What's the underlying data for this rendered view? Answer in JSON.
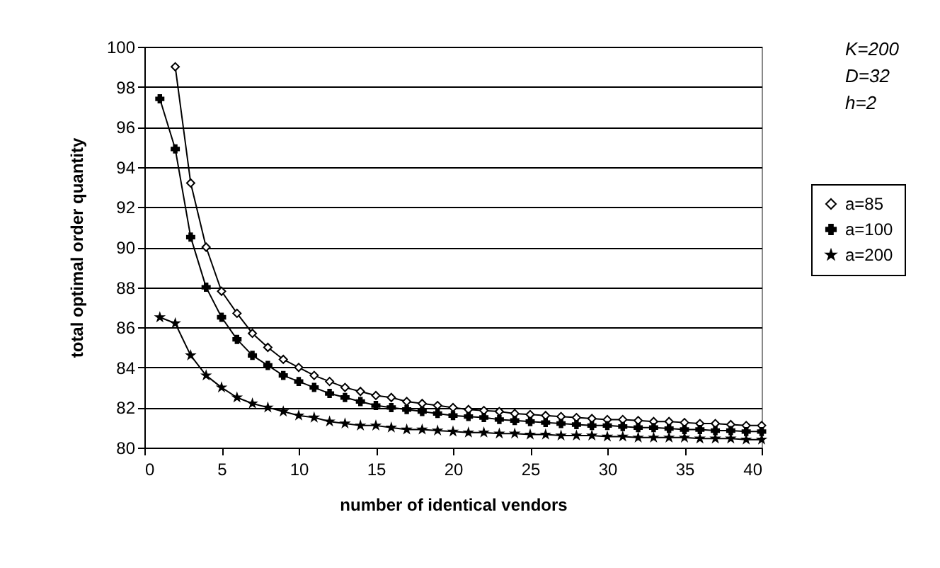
{
  "chart_data": {
    "type": "line",
    "xlabel": "number of identical vendors",
    "ylabel": "total optimal order quantity",
    "annotations": [
      "K=200",
      "D=32",
      "h=2"
    ],
    "x": [
      1,
      2,
      3,
      4,
      5,
      6,
      7,
      8,
      9,
      10,
      11,
      12,
      13,
      14,
      15,
      16,
      17,
      18,
      19,
      20,
      21,
      22,
      23,
      24,
      25,
      26,
      27,
      28,
      29,
      30,
      31,
      32,
      33,
      34,
      35,
      36,
      37,
      38,
      39,
      40
    ],
    "series": [
      {
        "name": "a=85",
        "color": "#000000",
        "marker": "diamond",
        "values": [
          null,
          99.0,
          93.2,
          90.0,
          87.8,
          86.7,
          85.7,
          85.0,
          84.4,
          84.0,
          83.6,
          83.3,
          83.0,
          82.8,
          82.6,
          82.5,
          82.3,
          82.2,
          82.1,
          82.0,
          81.9,
          81.85,
          81.8,
          81.7,
          81.65,
          81.6,
          81.55,
          81.5,
          81.45,
          81.4,
          81.4,
          81.35,
          81.3,
          81.3,
          81.25,
          81.2,
          81.2,
          81.15,
          81.1,
          81.1
        ]
      },
      {
        "name": "a=100",
        "color": "#000000",
        "marker": "cross",
        "values": [
          97.4,
          94.9,
          90.5,
          88.0,
          86.5,
          85.4,
          84.6,
          84.1,
          83.6,
          83.3,
          83.0,
          82.7,
          82.5,
          82.3,
          82.1,
          82.0,
          81.9,
          81.8,
          81.7,
          81.6,
          81.55,
          81.5,
          81.4,
          81.35,
          81.3,
          81.25,
          81.2,
          81.15,
          81.1,
          81.1,
          81.05,
          81.0,
          81.0,
          80.95,
          80.9,
          80.9,
          80.85,
          80.85,
          80.8,
          80.8
        ]
      },
      {
        "name": "a=200",
        "color": "#000000",
        "marker": "star",
        "values": [
          86.5,
          86.2,
          84.6,
          83.6,
          83.0,
          82.5,
          82.2,
          82.0,
          81.8,
          81.6,
          81.5,
          81.3,
          81.2,
          81.1,
          81.1,
          81.0,
          80.9,
          80.9,
          80.85,
          80.8,
          80.75,
          80.75,
          80.7,
          80.7,
          80.65,
          80.65,
          80.6,
          80.6,
          80.6,
          80.55,
          80.55,
          80.5,
          80.5,
          80.5,
          80.5,
          80.45,
          80.45,
          80.45,
          80.4,
          80.4
        ]
      }
    ],
    "xlim": [
      0,
      40
    ],
    "xticks": [
      0,
      5,
      10,
      15,
      20,
      25,
      30,
      35,
      40
    ],
    "ylim": [
      80,
      100
    ],
    "yticks": [
      80,
      82,
      84,
      86,
      88,
      90,
      92,
      94,
      96,
      98,
      100
    ],
    "grid": "y",
    "legend": "right",
    "line_style": "solid"
  }
}
